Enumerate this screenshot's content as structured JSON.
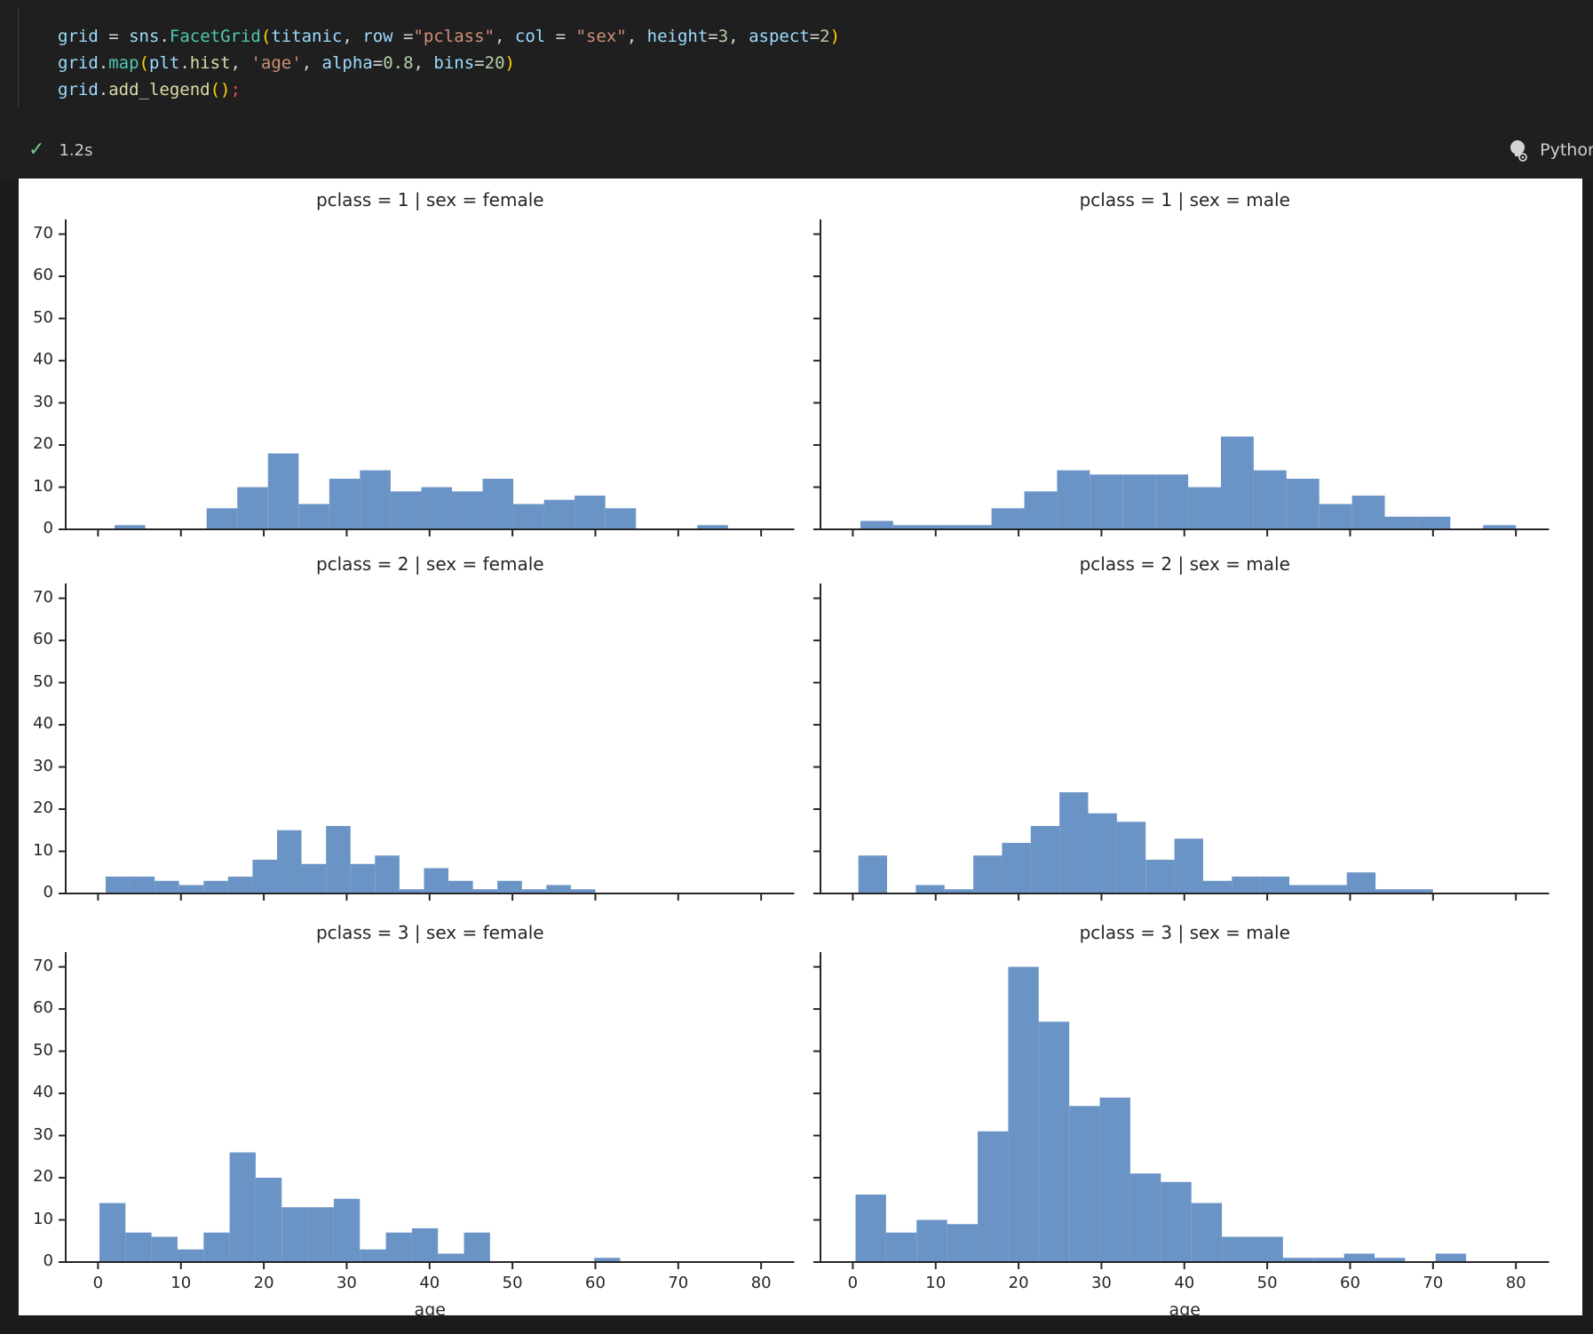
{
  "notebook": {
    "code_lines": [
      [
        {
          "text": "grid",
          "type": "variable"
        },
        {
          "text": " = ",
          "type": "operator"
        },
        {
          "text": "sns",
          "type": "variable"
        },
        {
          "text": ".",
          "type": "operator"
        },
        {
          "text": "FacetGrid",
          "type": "function"
        },
        {
          "text": "(",
          "type": "bracket"
        },
        {
          "text": "titanic",
          "type": "variable"
        },
        {
          "text": ", ",
          "type": "operator"
        },
        {
          "text": "row",
          "type": "variable"
        },
        {
          "text": " =",
          "type": "operator"
        },
        {
          "text": "\"pclass\"",
          "type": "string"
        },
        {
          "text": ", ",
          "type": "operator"
        },
        {
          "text": "col",
          "type": "variable"
        },
        {
          "text": " = ",
          "type": "operator"
        },
        {
          "text": "\"sex\"",
          "type": "string"
        },
        {
          "text": ", ",
          "type": "operator"
        },
        {
          "text": "height",
          "type": "variable"
        },
        {
          "text": "=",
          "type": "operator"
        },
        {
          "text": "3",
          "type": "number"
        },
        {
          "text": ", ",
          "type": "operator"
        },
        {
          "text": "aspect",
          "type": "variable"
        },
        {
          "text": "=",
          "type": "operator"
        },
        {
          "text": "2",
          "type": "number"
        },
        {
          "text": ")",
          "type": "bracket"
        }
      ],
      [
        {
          "text": "grid",
          "type": "variable"
        },
        {
          "text": ".",
          "type": "operator"
        },
        {
          "text": "map",
          "type": "function"
        },
        {
          "text": "(",
          "type": "bracket"
        },
        {
          "text": "plt",
          "type": "variable"
        },
        {
          "text": ".",
          "type": "operator"
        },
        {
          "text": "hist",
          "type": "method"
        },
        {
          "text": ", ",
          "type": "operator"
        },
        {
          "text": "'age'",
          "type": "string"
        },
        {
          "text": ", ",
          "type": "operator"
        },
        {
          "text": "alpha",
          "type": "variable"
        },
        {
          "text": "=",
          "type": "operator"
        },
        {
          "text": "0.8",
          "type": "number"
        },
        {
          "text": ", ",
          "type": "operator"
        },
        {
          "text": "bins",
          "type": "variable"
        },
        {
          "text": "=",
          "type": "operator"
        },
        {
          "text": "20",
          "type": "number"
        },
        {
          "text": ")",
          "type": "bracket"
        }
      ],
      [
        {
          "text": "grid",
          "type": "variable"
        },
        {
          "text": ".",
          "type": "operator"
        },
        {
          "text": "add_legend",
          "type": "method"
        },
        {
          "text": "()",
          "type": "bracket"
        },
        {
          "text": ";",
          "type": "punctuation"
        }
      ]
    ],
    "execution": {
      "status_icon": "check-icon",
      "duration": "1.2s",
      "kernel_label": "Python"
    }
  },
  "chart_data": {
    "type": "bar",
    "subtype": "histogram-facet-grid",
    "xlabel": "age",
    "ylabel": "",
    "xlim": [
      -3.9,
      84
    ],
    "ylim": [
      0,
      73.5
    ],
    "x_ticks": [
      0,
      10,
      20,
      30,
      40,
      50,
      60,
      70,
      80
    ],
    "y_ticks": [
      0,
      10,
      20,
      30,
      40,
      50,
      60,
      70
    ],
    "grid": false,
    "legend": "none",
    "bar_color": "#6b94c6",
    "bar_alpha": 0.8,
    "axis_color": "#262626",
    "facets": [
      {
        "title": "pclass = 1 | sex = female",
        "bin_start": 2.0,
        "bin_width": 3.7,
        "counts": [
          1,
          0,
          0,
          5,
          10,
          18,
          6,
          12,
          14,
          9,
          10,
          9,
          12,
          6,
          7,
          8,
          5,
          0,
          0,
          1
        ]
      },
      {
        "title": "pclass = 1 | sex = male",
        "bin_start": 0.92,
        "bin_width": 3.954,
        "counts": [
          2,
          1,
          1,
          1,
          5,
          9,
          14,
          13,
          13,
          13,
          10,
          22,
          14,
          12,
          6,
          8,
          3,
          3,
          0,
          1
        ]
      },
      {
        "title": "pclass = 2 | sex = female",
        "bin_start": 0.92,
        "bin_width": 2.954,
        "counts": [
          4,
          4,
          3,
          2,
          3,
          4,
          8,
          15,
          7,
          16,
          7,
          9,
          1,
          6,
          3,
          1,
          3,
          1,
          2,
          1
        ]
      },
      {
        "title": "pclass = 2 | sex = male",
        "bin_start": 0.67,
        "bin_width": 3.4665,
        "counts": [
          9,
          0,
          2,
          1,
          9,
          12,
          16,
          24,
          19,
          17,
          8,
          13,
          3,
          4,
          4,
          2,
          2,
          5,
          1,
          1
        ]
      },
      {
        "title": "pclass = 3 | sex = female",
        "bin_start": 0.17,
        "bin_width": 3.1415,
        "counts": [
          14,
          7,
          6,
          3,
          7,
          26,
          20,
          13,
          13,
          15,
          3,
          7,
          8,
          2,
          7,
          0,
          0,
          0,
          0,
          1
        ]
      },
      {
        "title": "pclass = 3 | sex = male",
        "bin_start": 0.33,
        "bin_width": 3.6835,
        "counts": [
          16,
          7,
          10,
          9,
          31,
          70,
          57,
          37,
          39,
          21,
          19,
          14,
          6,
          6,
          1,
          1,
          2,
          1,
          0,
          2
        ]
      }
    ]
  }
}
